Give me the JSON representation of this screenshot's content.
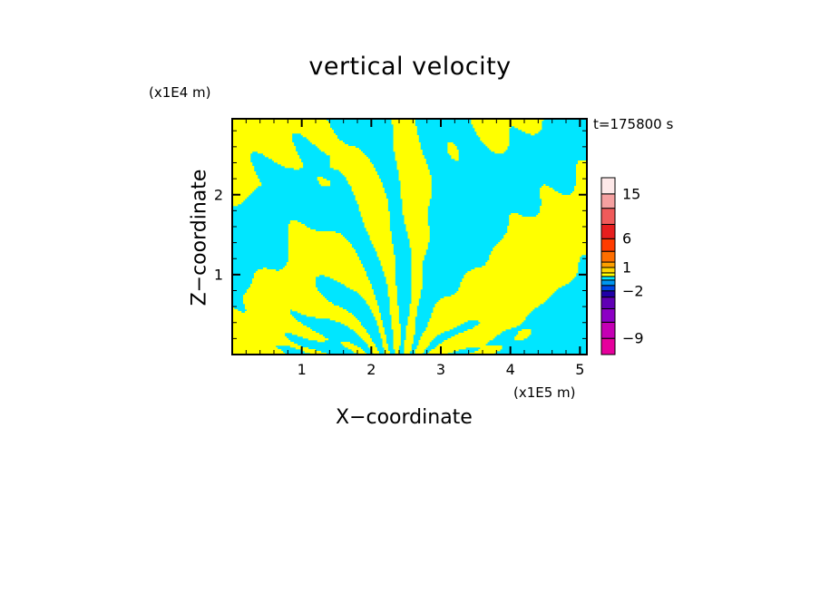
{
  "chart_data": {
    "type": "heatmap",
    "title": "vertical velocity",
    "xlabel": "X−coordinate",
    "ylabel": "Z−coordinate",
    "x_unit": "(x1E5 m)",
    "y_unit": "(x1E4 m)",
    "time_label": "t=175800 s",
    "xlim": [
      0,
      5.1
    ],
    "ylim": [
      0,
      2.95
    ],
    "x_ticks": [
      1,
      2,
      3,
      4,
      5
    ],
    "y_ticks": [
      1,
      2
    ],
    "colorbar": {
      "levels": [
        -12,
        -9,
        -6,
        -4,
        -3,
        -2,
        -1,
        -0.5,
        0,
        0.5,
        1,
        2,
        4,
        6,
        9,
        12,
        15,
        20
      ],
      "tick_labels": [
        {
          "label": "15",
          "value": 15
        },
        {
          "label": "6",
          "value": 6
        },
        {
          "label": "1",
          "value": 1
        },
        {
          "label": "−2",
          "value": -2
        },
        {
          "label": "−9",
          "value": -9
        }
      ],
      "colors": [
        "#e6009c",
        "#c400b4",
        "#8c00c4",
        "#6000b4",
        "#2000a8",
        "#0046e6",
        "#0096f0",
        "#00e6ff",
        "#ffff00",
        "#ffd700",
        "#ffa000",
        "#ff6e00",
        "#ff3c00",
        "#e61e1e",
        "#f05a5a",
        "#f5a0a0",
        "#fde8e8"
      ]
    },
    "field_colors": {
      "negative": "#00e6ff",
      "positive": "#ffff00"
    },
    "field_description_values": {
      "min": -9,
      "max": 15
    }
  }
}
